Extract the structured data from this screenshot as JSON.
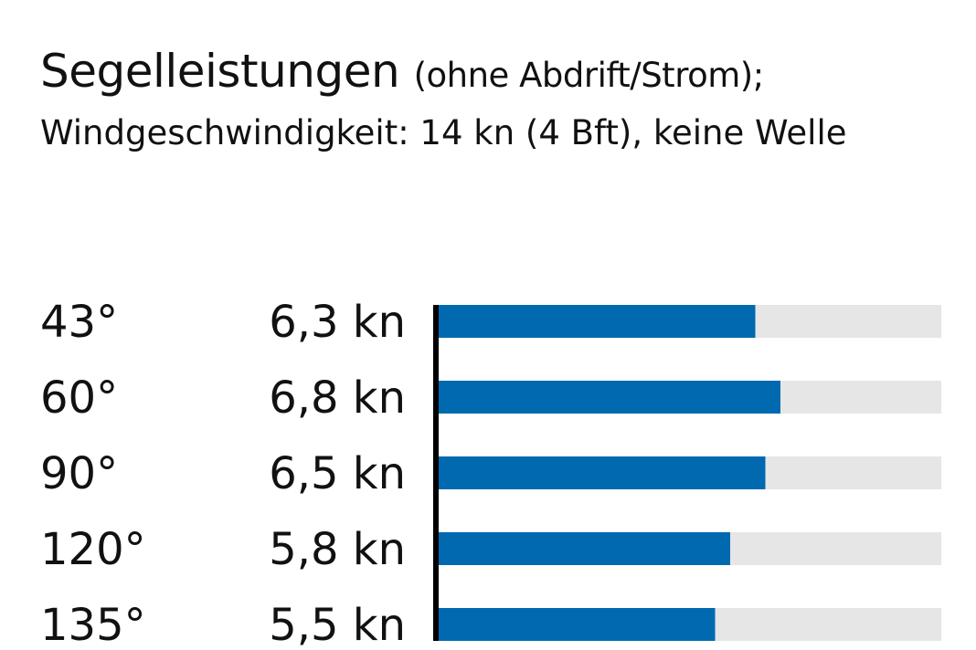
{
  "chart_data": {
    "type": "bar",
    "orientation": "horizontal",
    "title": "Segelleistungen",
    "title_suffix": "(ohne Abdrift/Strom);",
    "subtitle": "Windgeschwindigkeit: 14 kn (4 Bft), keine Welle",
    "categories": [
      "43°",
      "60°",
      "90°",
      "120°",
      "135°"
    ],
    "values": [
      6.3,
      6.8,
      6.5,
      5.8,
      5.5
    ],
    "value_labels": [
      "6,3 kn",
      "6,8 kn",
      "6,5 kn",
      "5,8 kn",
      "5,5 kn"
    ],
    "unit": "kn",
    "xlim": [
      0,
      10
    ],
    "xlabel": "",
    "ylabel": "",
    "grid": false,
    "colors": {
      "bar": "#0069b0",
      "track": "#e6e6e6",
      "axis": "#000000",
      "text": "#111111"
    }
  }
}
